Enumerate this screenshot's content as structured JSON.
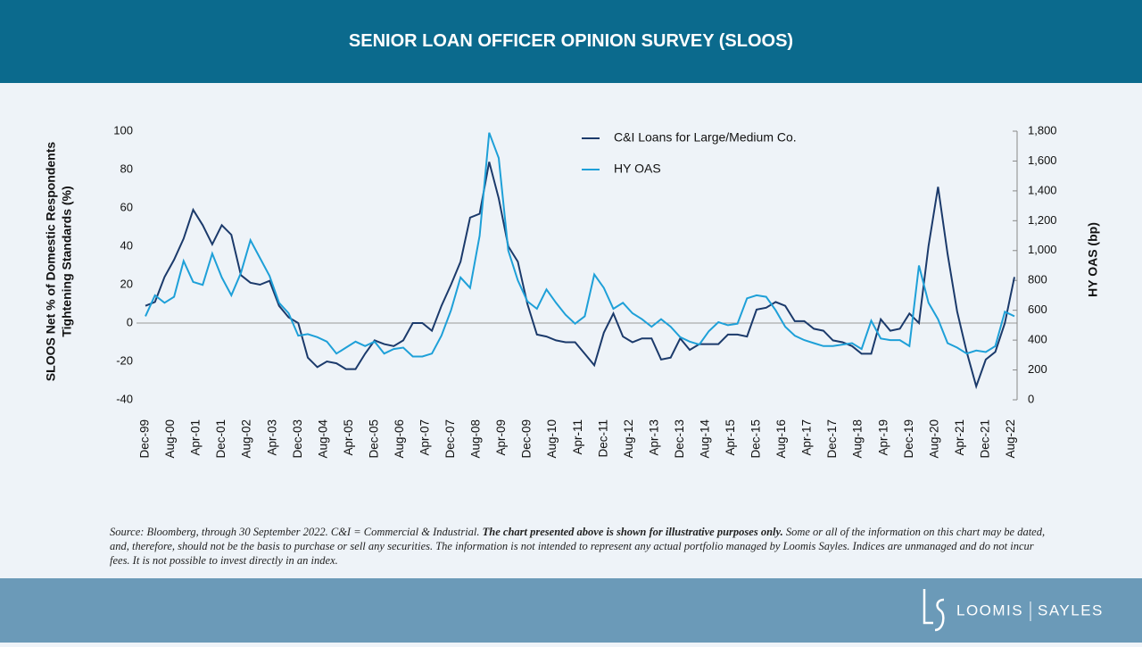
{
  "header": {
    "title": "SENIOR LOAN OFFICER OPINION SURVEY (SLOOS)"
  },
  "chart_data": {
    "type": "line",
    "ylabel": [
      "SLOOS Net % of Domestic Respondents",
      "Tightening Standards (%)"
    ],
    "y2label": "HY OAS (bp)",
    "legend": "upper center",
    "x": [
      "1999-12",
      "2000-03",
      "2000-06",
      "2000-09",
      "2000-12",
      "2001-03",
      "2001-06",
      "2001-09",
      "2001-12",
      "2002-03",
      "2002-06",
      "2002-09",
      "2002-12",
      "2003-03",
      "2003-06",
      "2003-09",
      "2003-12",
      "2004-03",
      "2004-06",
      "2004-09",
      "2004-12",
      "2005-03",
      "2005-06",
      "2005-09",
      "2005-12",
      "2006-03",
      "2006-06",
      "2006-09",
      "2006-12",
      "2007-03",
      "2007-06",
      "2007-09",
      "2007-12",
      "2008-03",
      "2008-06",
      "2008-09",
      "2008-12",
      "2009-03",
      "2009-06",
      "2009-09",
      "2009-12",
      "2010-03",
      "2010-06",
      "2010-09",
      "2010-12",
      "2011-03",
      "2011-06",
      "2011-09",
      "2011-12",
      "2012-03",
      "2012-06",
      "2012-09",
      "2012-12",
      "2013-03",
      "2013-06",
      "2013-09",
      "2013-12",
      "2014-03",
      "2014-06",
      "2014-09",
      "2014-12",
      "2015-03",
      "2015-06",
      "2015-09",
      "2015-12",
      "2016-03",
      "2016-06",
      "2016-09",
      "2016-12",
      "2017-03",
      "2017-06",
      "2017-09",
      "2017-12",
      "2018-03",
      "2018-06",
      "2018-09",
      "2018-12",
      "2019-03",
      "2019-06",
      "2019-09",
      "2019-12",
      "2020-03",
      "2020-06",
      "2020-09",
      "2020-12",
      "2021-03",
      "2021-06",
      "2021-09",
      "2021-12",
      "2022-03",
      "2022-06",
      "2022-09"
    ],
    "xlim": [
      "1999-12",
      "2022-09"
    ],
    "xticks": [
      {
        "value": "1999-12",
        "label": "Dec-99"
      },
      {
        "value": "2000-08",
        "label": "Aug-00"
      },
      {
        "value": "2001-04",
        "label": "Apr-01"
      },
      {
        "value": "2001-12",
        "label": "Dec-01"
      },
      {
        "value": "2002-08",
        "label": "Aug-02"
      },
      {
        "value": "2003-04",
        "label": "Apr-03"
      },
      {
        "value": "2003-12",
        "label": "Dec-03"
      },
      {
        "value": "2004-08",
        "label": "Aug-04"
      },
      {
        "value": "2005-04",
        "label": "Apr-05"
      },
      {
        "value": "2005-12",
        "label": "Dec-05"
      },
      {
        "value": "2006-08",
        "label": "Aug-06"
      },
      {
        "value": "2007-04",
        "label": "Apr-07"
      },
      {
        "value": "2007-12",
        "label": "Dec-07"
      },
      {
        "value": "2008-08",
        "label": "Aug-08"
      },
      {
        "value": "2009-04",
        "label": "Apr-09"
      },
      {
        "value": "2009-12",
        "label": "Dec-09"
      },
      {
        "value": "2010-08",
        "label": "Aug-10"
      },
      {
        "value": "2011-04",
        "label": "Apr-11"
      },
      {
        "value": "2011-12",
        "label": "Dec-11"
      },
      {
        "value": "2012-08",
        "label": "Aug-12"
      },
      {
        "value": "2013-04",
        "label": "Apr-13"
      },
      {
        "value": "2013-12",
        "label": "Dec-13"
      },
      {
        "value": "2014-08",
        "label": "Aug-14"
      },
      {
        "value": "2015-04",
        "label": "Apr-15"
      },
      {
        "value": "2015-12",
        "label": "Dec-15"
      },
      {
        "value": "2016-08",
        "label": "Aug-16"
      },
      {
        "value": "2017-04",
        "label": "Apr-17"
      },
      {
        "value": "2017-12",
        "label": "Dec-17"
      },
      {
        "value": "2018-08",
        "label": "Aug-18"
      },
      {
        "value": "2019-04",
        "label": "Apr-19"
      },
      {
        "value": "2019-12",
        "label": "Dec-19"
      },
      {
        "value": "2020-08",
        "label": "Aug-20"
      },
      {
        "value": "2021-04",
        "label": "Apr-21"
      },
      {
        "value": "2021-12",
        "label": "Dec-21"
      },
      {
        "value": "2022-08",
        "label": "Aug-22"
      }
    ],
    "ylim": [
      -40,
      100
    ],
    "yticks": [
      -40,
      -20,
      0,
      20,
      40,
      60,
      80,
      100
    ],
    "y2lim": [
      0,
      1800
    ],
    "y2ticks": [
      0,
      200,
      400,
      600,
      800,
      {
        "value": 1000,
        "label": "1,000"
      },
      {
        "value": 1200,
        "label": "1,200"
      },
      {
        "value": 1400,
        "label": "1,400"
      },
      {
        "value": 1600,
        "label": "1,600"
      },
      {
        "value": 1800,
        "label": "1,800"
      }
    ],
    "series": [
      {
        "name": "C&I Loans for Large/Medium Co.",
        "color": "#1b3a6b",
        "values": [
          9,
          11,
          24,
          33,
          44,
          59,
          51,
          41,
          51,
          46,
          25,
          21,
          20,
          22,
          9,
          3,
          0,
          -18,
          -23,
          -20,
          -21,
          -24,
          -24,
          -16,
          -9,
          -11,
          -12,
          -9,
          0,
          0,
          -4,
          9,
          20,
          32,
          55,
          57,
          84,
          65,
          40,
          32,
          10,
          -6,
          -7,
          -9,
          -10,
          -10,
          -16,
          -22,
          -5,
          5,
          -7,
          -10,
          -8,
          -8,
          -19,
          -18,
          -8,
          -14,
          -11,
          -11,
          -11,
          -6,
          -6,
          -7,
          7,
          8,
          11,
          9,
          1,
          1,
          -3,
          -4,
          -9,
          -10,
          -12,
          -16,
          -16,
          2,
          -4,
          -3,
          5,
          0,
          40,
          71,
          36,
          6,
          -15,
          -33,
          -19,
          -15,
          0,
          24
        ]
      },
      {
        "name": "HY OAS",
        "color": "#1ea0d8",
        "axis": "y2",
        "values": [
          560,
          700,
          650,
          690,
          930,
          790,
          770,
          980,
          820,
          700,
          850,
          1070,
          950,
          830,
          650,
          580,
          430,
          440,
          420,
          390,
          310,
          350,
          390,
          360,
          390,
          310,
          340,
          350,
          290,
          290,
          310,
          430,
          600,
          820,
          750,
          1100,
          1790,
          1620,
          1000,
          800,
          660,
          610,
          740,
          650,
          570,
          510,
          560,
          840,
          750,
          610,
          650,
          580,
          540,
          490,
          540,
          490,
          420,
          390,
          370,
          460,
          520,
          500,
          510,
          680,
          700,
          690,
          600,
          490,
          430,
          400,
          380,
          360,
          360,
          370,
          380,
          340,
          530,
          410,
          400,
          400,
          360,
          900,
          650,
          540,
          380,
          350,
          310,
          330,
          320,
          360,
          590,
          560
        ]
      }
    ]
  },
  "footnote": [
    "Source: Bloomberg, through 30 September 2022. C&I = Commercial & Industrial. ",
    "The chart presented above is shown for illustrative purposes only.",
    " Some or all of the information on this chart may be dated, and, therefore, should not be the basis to purchase or sell any securities. The information is not intended to represent any actual portfolio managed by Loomis Sayles. Indices are unmanaged and do not incur fees. It is not possible to invest directly in an index."
  ],
  "logo": {
    "left": "LOOMIS",
    "right": "SAYLES"
  }
}
